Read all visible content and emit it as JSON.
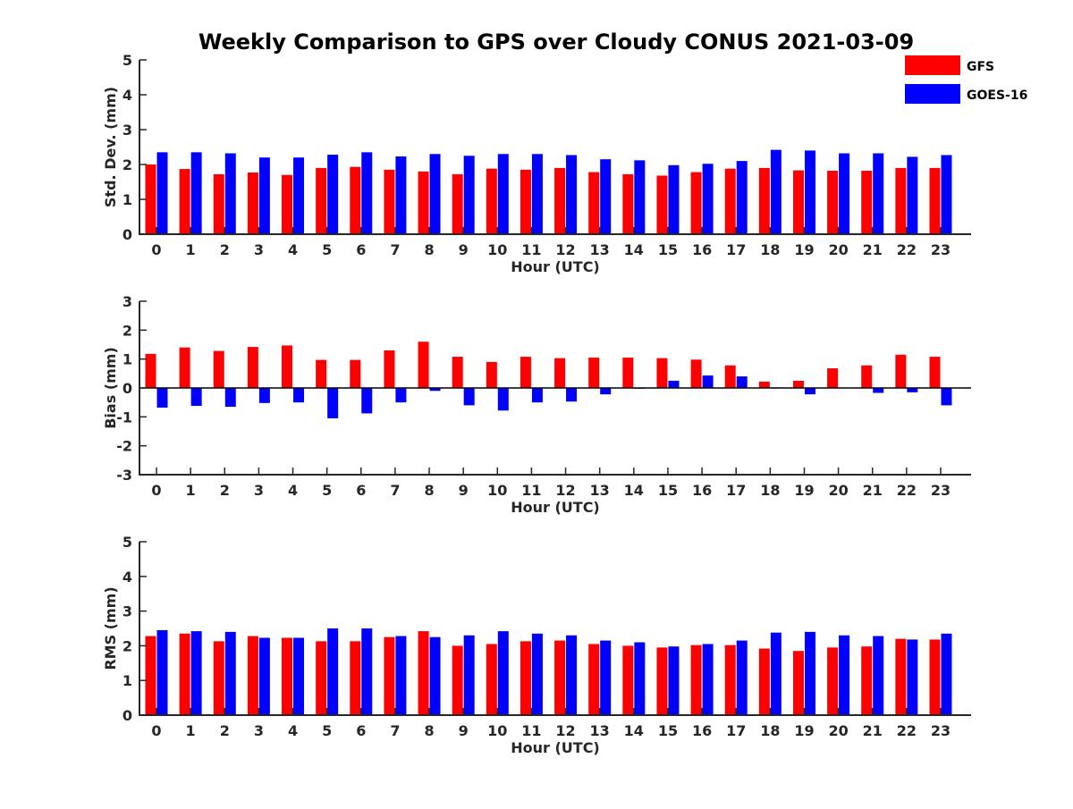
{
  "chart_data": {
    "type": "bar",
    "title": "Weekly Comparison to GPS over Cloudy CONUS 2021-03-09",
    "legend": {
      "placement": "top-right",
      "entries": [
        "GFS",
        "GOES-16"
      ]
    },
    "colors": {
      "GFS": "#ff0000",
      "GOES-16": "#0000ff"
    },
    "categories": [
      "0",
      "1",
      "2",
      "3",
      "4",
      "5",
      "6",
      "7",
      "8",
      "9",
      "10",
      "11",
      "12",
      "13",
      "14",
      "15",
      "16",
      "17",
      "18",
      "19",
      "20",
      "21",
      "22",
      "23"
    ],
    "panels": [
      {
        "ylabel": "Std. Dev. (mm)",
        "xlabel": "Hour (UTC)",
        "ylim": [
          0,
          5
        ],
        "yticks": [
          "0",
          "1",
          "2",
          "3",
          "4",
          "5"
        ],
        "series": [
          {
            "name": "GFS",
            "values": [
              2.0,
              1.87,
              1.72,
              1.77,
              1.7,
              1.9,
              1.93,
              1.85,
              1.8,
              1.72,
              1.88,
              1.85,
              1.9,
              1.78,
              1.72,
              1.68,
              1.78,
              1.88,
              1.9,
              1.83,
              1.82,
              1.82,
              1.9,
              1.9
            ]
          },
          {
            "name": "GOES-16",
            "values": [
              2.35,
              2.35,
              2.32,
              2.2,
              2.2,
              2.28,
              2.35,
              2.23,
              2.3,
              2.25,
              2.3,
              2.3,
              2.27,
              2.15,
              2.12,
              1.98,
              2.02,
              2.1,
              2.42,
              2.4,
              2.32,
              2.32,
              2.22,
              2.27
            ]
          }
        ]
      },
      {
        "ylabel": "Bias (mm)",
        "xlabel": "Hour (UTC)",
        "ylim": [
          -3,
          3
        ],
        "yticks": [
          "-3",
          "-2",
          "-1",
          "0",
          "1",
          "2",
          "3"
        ],
        "series": [
          {
            "name": "GFS",
            "values": [
              1.18,
              1.4,
              1.28,
              1.42,
              1.47,
              0.97,
              0.97,
              1.3,
              1.6,
              1.08,
              0.9,
              1.08,
              1.03,
              1.05,
              1.05,
              1.03,
              0.98,
              0.78,
              0.22,
              0.25,
              0.68,
              0.78,
              1.15,
              1.08
            ]
          },
          {
            "name": "GOES-16",
            "values": [
              -0.68,
              -0.62,
              -0.65,
              -0.52,
              -0.5,
              -1.05,
              -0.88,
              -0.5,
              -0.1,
              -0.6,
              -0.78,
              -0.5,
              -0.47,
              -0.22,
              -0.02,
              0.25,
              0.43,
              0.4,
              0.02,
              -0.22,
              0.0,
              -0.17,
              -0.15,
              -0.6
            ]
          }
        ]
      },
      {
        "ylabel": "RMS (mm)",
        "xlabel": "Hour (UTC)",
        "ylim": [
          0,
          5
        ],
        "yticks": [
          "0",
          "1",
          "2",
          "3",
          "4",
          "5"
        ],
        "series": [
          {
            "name": "GFS",
            "values": [
              2.28,
              2.35,
              2.13,
              2.28,
              2.23,
              2.13,
              2.13,
              2.25,
              2.42,
              2.0,
              2.05,
              2.13,
              2.15,
              2.05,
              2.0,
              1.95,
              2.02,
              2.02,
              1.92,
              1.85,
              1.95,
              1.98,
              2.2,
              2.18
            ]
          },
          {
            "name": "GOES-16",
            "values": [
              2.45,
              2.42,
              2.4,
              2.23,
              2.23,
              2.5,
              2.5,
              2.28,
              2.25,
              2.3,
              2.42,
              2.35,
              2.3,
              2.15,
              2.1,
              1.98,
              2.05,
              2.15,
              2.38,
              2.4,
              2.3,
              2.28,
              2.18,
              2.35
            ]
          }
        ]
      }
    ]
  }
}
